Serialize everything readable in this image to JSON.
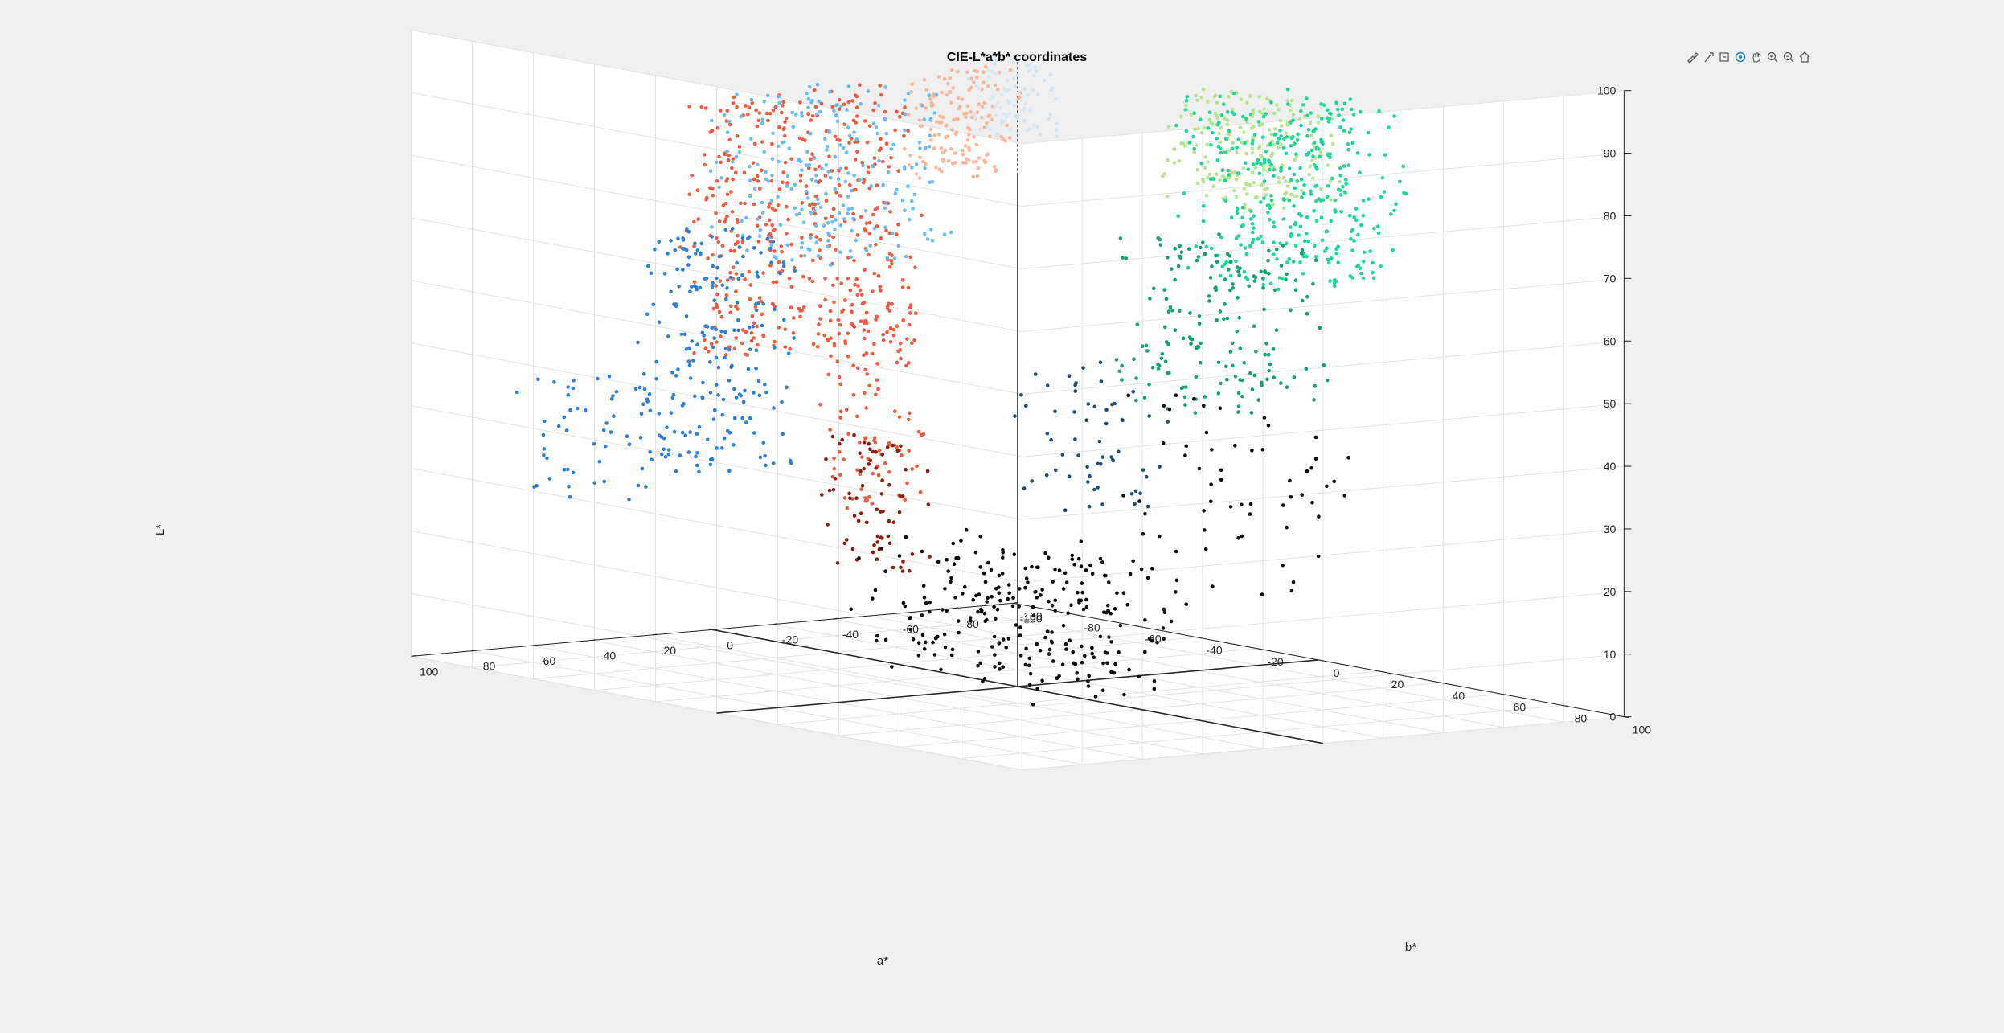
{
  "window": {
    "title": "CIE-L*a*b* coordinates"
  },
  "toolbar": {
    "tools": [
      {
        "name": "brush-data-icon",
        "active": false
      },
      {
        "name": "data-tips-icon",
        "active": false
      },
      {
        "name": "export-icon",
        "active": false
      },
      {
        "name": "rotate-3d-icon",
        "active": true
      },
      {
        "name": "pan-icon",
        "active": false
      },
      {
        "name": "zoom-in-icon",
        "active": false
      },
      {
        "name": "zoom-out-icon",
        "active": false
      },
      {
        "name": "home-icon",
        "active": false
      }
    ]
  },
  "chart_data": {
    "type": "scatter",
    "title": "CIE-L*a*b* coordinates",
    "xlabel": "a*",
    "ylabel": "b*",
    "zlabel": "L*",
    "xlim": [
      -100,
      100
    ],
    "ylim": [
      -100,
      100
    ],
    "zlim": [
      0,
      100
    ],
    "x_ticks": [
      "-100",
      "-80",
      "-60",
      "-40",
      "-20",
      "0",
      "20",
      "40",
      "60",
      "80",
      "100"
    ],
    "y_ticks": [
      "-100",
      "-80",
      "-60",
      "-40",
      "-20",
      "0",
      "20",
      "40",
      "60",
      "80",
      "100"
    ],
    "z_ticks": [
      "0",
      "10",
      "20",
      "30",
      "40",
      "50",
      "60",
      "70",
      "80",
      "90",
      "100"
    ],
    "grid": true,
    "box": "back-planes",
    "reference_axes": "through origin (a*=0, b*=0, L* 0–100)",
    "view": "3-D",
    "series": [
      {
        "color": "#f15a3f",
        "clusters": [
          {
            "a_range": [
              25,
              92
            ],
            "b_range": [
              -22,
              -4
            ],
            "L_range": [
              55,
              96
            ],
            "count": 450
          },
          {
            "a_range": [
              30,
              55
            ],
            "b_range": [
              -14,
              2
            ],
            "L_range": [
              30,
              62
            ],
            "count": 110
          }
        ]
      },
      {
        "color": "#fcb69a",
        "clusters": [
          {
            "a_range": [
              2,
              30
            ],
            "b_range": [
              -10,
              4
            ],
            "L_range": [
              82,
              99
            ],
            "count": 150
          }
        ]
      },
      {
        "color": "#6bbcf5",
        "clusters": [
          {
            "a_range": [
              -10,
              45
            ],
            "b_range": [
              -60,
              -28
            ],
            "L_range": [
              66,
              92
            ],
            "count": 240
          }
        ]
      },
      {
        "color": "#2b7fd8",
        "clusters": [
          {
            "a_range": [
              20,
              50
            ],
            "b_range": [
              -80,
              -50
            ],
            "L_range": [
              30,
              68
            ],
            "count": 220
          },
          {
            "a_range": [
              45,
              75
            ],
            "b_range": [
              -95,
              -70
            ],
            "L_range": [
              25,
              45
            ],
            "count": 50
          }
        ]
      },
      {
        "color": "#8a1f10",
        "clusters": [
          {
            "a_range": [
              18,
              42
            ],
            "b_range": [
              -25,
              -8
            ],
            "L_range": [
              18,
              40
            ],
            "count": 70
          }
        ]
      },
      {
        "color": "#b7e58e",
        "clusters": [
          {
            "a_range": [
              -30,
              -5
            ],
            "b_range": [
              40,
              80
            ],
            "L_range": [
              82,
              99
            ],
            "count": 220
          }
        ]
      },
      {
        "color": "#19d99a",
        "clusters": [
          {
            "a_range": [
              -60,
              -20
            ],
            "b_range": [
              30,
              70
            ],
            "L_range": [
              68,
              96
            ],
            "count": 360
          }
        ]
      },
      {
        "color": "#12a172",
        "clusters": [
          {
            "a_range": [
              -60,
              -25
            ],
            "b_range": [
              5,
              45
            ],
            "L_range": [
              45,
              72
            ],
            "count": 180
          }
        ]
      },
      {
        "color": "#d8e6f2",
        "clusters": [
          {
            "a_range": [
              -5,
              8
            ],
            "b_range": [
              -10,
              10
            ],
            "L_range": [
              88,
              100
            ],
            "count": 90
          }
        ]
      },
      {
        "color": "#1e4d7a",
        "clusters": [
          {
            "a_range": [
              -35,
              -5
            ],
            "b_range": [
              -15,
              25
            ],
            "L_range": [
              28,
              50
            ],
            "count": 60
          }
        ]
      },
      {
        "color": "#0c0c0c",
        "clusters": [
          {
            "a_range": [
              -30,
              25
            ],
            "b_range": [
              -35,
              30
            ],
            "L_range": [
              0,
              22
            ],
            "count": 260
          },
          {
            "a_range": [
              -70,
              -30
            ],
            "b_range": [
              -10,
              50
            ],
            "L_range": [
              15,
              45
            ],
            "count": 60
          }
        ]
      }
    ]
  }
}
